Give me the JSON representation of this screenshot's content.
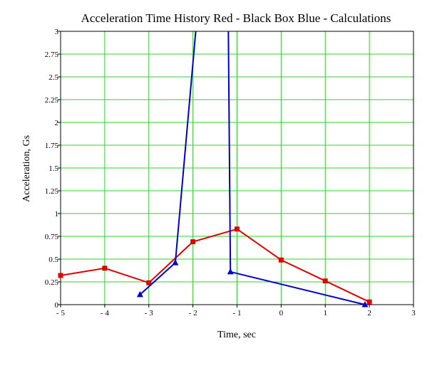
{
  "chart_data": {
    "type": "line",
    "title": "Acceleration Time History  Red - Black Box   Blue - Calculations",
    "xlabel": "Time, sec",
    "ylabel": "Acceleration, Gs",
    "xlim": [
      -5,
      3
    ],
    "ylim": [
      0,
      3
    ],
    "xticks": [
      -5,
      -4,
      -3,
      -2,
      -1,
      0,
      1,
      2,
      3
    ],
    "xtick_labels": [
      "- 5",
      "- 4",
      "- 3",
      "- 2",
      "- 1",
      "0",
      "1",
      "2",
      "3"
    ],
    "yticks": [
      0,
      0.25,
      0.5,
      0.75,
      1,
      1.25,
      1.5,
      1.75,
      2,
      2.25,
      2.5,
      2.75,
      3
    ],
    "ytick_labels": [
      "0",
      "0.25",
      "0.5",
      "0.75",
      "1",
      "1.25",
      "1.5",
      "1.75",
      "2",
      "2.25",
      "2.5",
      "2.75",
      "3"
    ],
    "grid": true,
    "grid_color": "#33cc33",
    "series": [
      {
        "color": "#e00000",
        "marker": "square",
        "x": [
          -5,
          -4,
          -3,
          -2,
          -1,
          0,
          1,
          2
        ],
        "y": [
          0.32,
          0.4,
          0.24,
          0.69,
          0.83,
          0.49,
          0.26,
          0.03
        ]
      },
      {
        "color": "#0000cc",
        "marker": "triangle",
        "x": [
          -3.2,
          -2.4,
          -1.9,
          -1.2,
          -1.15,
          1.9
        ],
        "y": [
          0.11,
          0.46,
          3.2,
          3.2,
          0.36,
          0.0
        ],
        "marked": [
          true,
          true,
          false,
          false,
          true,
          true
        ]
      }
    ]
  }
}
